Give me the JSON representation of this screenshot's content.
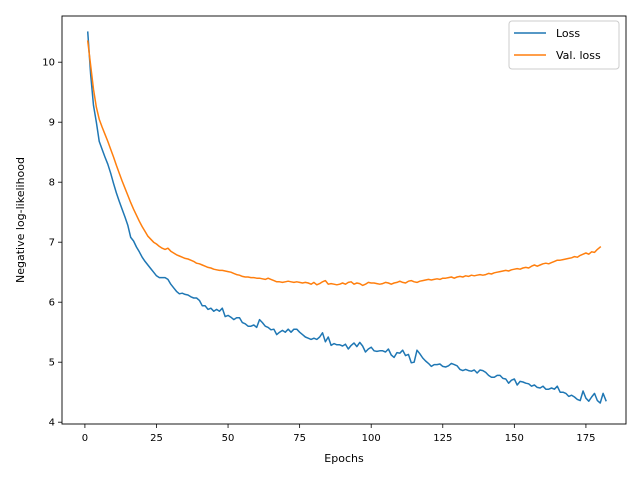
{
  "chart_data": {
    "type": "line",
    "title": "",
    "xlabel": "Epochs",
    "ylabel": "Negative log-likelihood",
    "xlim": [
      -8,
      189
    ],
    "ylim": [
      3.97,
      10.77
    ],
    "xticks": [
      0,
      25,
      50,
      75,
      100,
      125,
      150,
      175
    ],
    "yticks": [
      4,
      5,
      6,
      7,
      8,
      9,
      10
    ],
    "grid": false,
    "legend_position": "top-right",
    "x_start": 1,
    "x_step": 1,
    "series": [
      {
        "name": "Loss",
        "color": "#1f77b4",
        "values": [
          10.5,
          9.8,
          9.28,
          9.0,
          8.68,
          8.55,
          8.42,
          8.3,
          8.15,
          7.98,
          7.82,
          7.68,
          7.55,
          7.42,
          7.28,
          7.08,
          7.02,
          6.92,
          6.84,
          6.75,
          6.68,
          6.62,
          6.56,
          6.5,
          6.44,
          6.41,
          6.41,
          6.41,
          6.38,
          6.3,
          6.24,
          6.18,
          6.14,
          6.15,
          6.13,
          6.12,
          6.09,
          6.07,
          6.07,
          6.03,
          5.94,
          5.94,
          5.88,
          5.9,
          5.85,
          5.88,
          5.85,
          5.9,
          5.76,
          5.78,
          5.75,
          5.71,
          5.74,
          5.74,
          5.66,
          5.64,
          5.6,
          5.6,
          5.62,
          5.58,
          5.71,
          5.66,
          5.6,
          5.58,
          5.54,
          5.55,
          5.46,
          5.5,
          5.53,
          5.5,
          5.55,
          5.5,
          5.55,
          5.55,
          5.5,
          5.46,
          5.42,
          5.4,
          5.38,
          5.4,
          5.38,
          5.42,
          5.49,
          5.34,
          5.42,
          5.28,
          5.31,
          5.29,
          5.29,
          5.27,
          5.3,
          5.22,
          5.28,
          5.32,
          5.26,
          5.33,
          5.27,
          5.17,
          5.22,
          5.25,
          5.19,
          5.18,
          5.19,
          5.19,
          5.17,
          5.22,
          5.12,
          5.08,
          5.16,
          5.15,
          5.2,
          5.11,
          5.13,
          4.99,
          5.0,
          5.2,
          5.14,
          5.07,
          5.02,
          4.98,
          4.93,
          4.96,
          4.96,
          4.97,
          4.93,
          4.92,
          4.94,
          4.98,
          4.96,
          4.94,
          4.88,
          4.86,
          4.88,
          4.86,
          4.85,
          4.87,
          4.82,
          4.87,
          4.86,
          4.83,
          4.78,
          4.75,
          4.75,
          4.78,
          4.78,
          4.73,
          4.72,
          4.65,
          4.7,
          4.72,
          4.62,
          4.68,
          4.67,
          4.65,
          4.64,
          4.6,
          4.62,
          4.58,
          4.57,
          4.6,
          4.55,
          4.55,
          4.57,
          4.55,
          4.6,
          4.5,
          4.5,
          4.48,
          4.43,
          4.45,
          4.42,
          4.38,
          4.36,
          4.52,
          4.4,
          4.35,
          4.42,
          4.48,
          4.36,
          4.32,
          4.48,
          4.36
        ]
      },
      {
        "name": "Val. loss",
        "color": "#ff7f0e",
        "values": [
          10.35,
          9.95,
          9.55,
          9.25,
          9.05,
          8.92,
          8.8,
          8.68,
          8.55,
          8.42,
          8.28,
          8.15,
          8.02,
          7.9,
          7.78,
          7.66,
          7.55,
          7.45,
          7.35,
          7.26,
          7.18,
          7.1,
          7.05,
          7.0,
          6.97,
          6.93,
          6.9,
          6.88,
          6.9,
          6.85,
          6.82,
          6.79,
          6.77,
          6.75,
          6.73,
          6.72,
          6.7,
          6.68,
          6.65,
          6.64,
          6.62,
          6.6,
          6.58,
          6.57,
          6.55,
          6.54,
          6.53,
          6.53,
          6.52,
          6.51,
          6.5,
          6.48,
          6.46,
          6.45,
          6.43,
          6.42,
          6.42,
          6.41,
          6.41,
          6.4,
          6.4,
          6.39,
          6.38,
          6.4,
          6.38,
          6.36,
          6.34,
          6.34,
          6.33,
          6.34,
          6.35,
          6.34,
          6.33,
          6.34,
          6.33,
          6.32,
          6.33,
          6.32,
          6.3,
          6.33,
          6.29,
          6.31,
          6.34,
          6.36,
          6.3,
          6.31,
          6.3,
          6.29,
          6.3,
          6.32,
          6.3,
          6.33,
          6.34,
          6.3,
          6.32,
          6.31,
          6.28,
          6.3,
          6.33,
          6.32,
          6.32,
          6.31,
          6.3,
          6.31,
          6.33,
          6.32,
          6.3,
          6.32,
          6.33,
          6.35,
          6.33,
          6.32,
          6.35,
          6.36,
          6.34,
          6.33,
          6.35,
          6.36,
          6.37,
          6.38,
          6.37,
          6.38,
          6.39,
          6.38,
          6.4,
          6.4,
          6.41,
          6.42,
          6.4,
          6.42,
          6.43,
          6.42,
          6.44,
          6.43,
          6.45,
          6.44,
          6.45,
          6.46,
          6.45,
          6.46,
          6.48,
          6.47,
          6.49,
          6.5,
          6.51,
          6.52,
          6.53,
          6.52,
          6.54,
          6.55,
          6.56,
          6.55,
          6.57,
          6.58,
          6.57,
          6.6,
          6.62,
          6.6,
          6.62,
          6.64,
          6.65,
          6.64,
          6.66,
          6.68,
          6.7,
          6.7,
          6.71,
          6.72,
          6.73,
          6.74,
          6.76,
          6.75,
          6.78,
          6.8,
          6.82,
          6.8,
          6.84,
          6.83,
          6.88,
          6.92
        ]
      }
    ]
  }
}
